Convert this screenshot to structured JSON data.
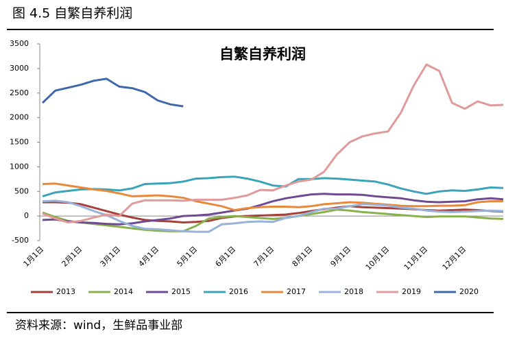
{
  "header": {
    "title": "图 4.5 自繁自养利润"
  },
  "chart_data": {
    "type": "line",
    "title": "自繁自养利润",
    "categories": [
      "1月1日",
      null,
      null,
      "2月1日",
      null,
      null,
      "3月1日",
      null,
      null,
      "4月1日",
      null,
      null,
      "5月1日",
      null,
      null,
      "6月1日",
      null,
      null,
      "7月1日",
      null,
      null,
      "8月1日",
      null,
      null,
      "9月1日",
      null,
      null,
      "10月1日",
      null,
      null,
      "11月1日",
      null,
      null,
      "12月1日",
      null,
      null,
      null
    ],
    "ylim": [
      -500,
      3500
    ],
    "yticks": [
      -500,
      0,
      500,
      1000,
      1500,
      2000,
      2500,
      3000,
      3500
    ],
    "grid": false,
    "legend": "bottom",
    "series": [
      {
        "name": "2013",
        "color": "#a5403c",
        "values": [
          280,
          280,
          270,
          240,
          170,
          100,
          30,
          -30,
          -80,
          -100,
          -110,
          -130,
          -120,
          -100,
          -40,
          -10,
          0,
          10,
          20,
          30,
          60,
          100,
          140,
          170,
          200,
          180,
          170,
          160,
          150,
          140,
          120,
          110,
          120,
          130,
          120,
          100,
          90
        ]
      },
      {
        "name": "2014",
        "color": "#88b04b",
        "values": [
          70,
          -20,
          -100,
          -130,
          -160,
          -190,
          -220,
          -250,
          -280,
          -300,
          -310,
          -310,
          -200,
          -50,
          -20,
          0,
          -20,
          -40,
          -60,
          -40,
          0,
          40,
          80,
          130,
          110,
          80,
          60,
          40,
          20,
          0,
          -20,
          -10,
          -10,
          -10,
          -30,
          -50,
          -60
        ]
      },
      {
        "name": "2015",
        "color": "#6f4a93",
        "values": [
          -80,
          -70,
          -110,
          -130,
          -140,
          -160,
          -170,
          -150,
          -110,
          -80,
          -50,
          0,
          10,
          30,
          70,
          110,
          150,
          220,
          300,
          360,
          400,
          440,
          450,
          440,
          440,
          430,
          400,
          380,
          360,
          320,
          290,
          280,
          290,
          300,
          340,
          360,
          340
        ]
      },
      {
        "name": "2016",
        "color": "#3ba3b8",
        "values": [
          400,
          480,
          510,
          540,
          550,
          540,
          520,
          560,
          650,
          660,
          670,
          700,
          760,
          770,
          790,
          800,
          760,
          700,
          620,
          600,
          750,
          750,
          770,
          760,
          740,
          720,
          700,
          640,
          560,
          500,
          450,
          500,
          520,
          510,
          540,
          580,
          570
        ]
      },
      {
        "name": "2017",
        "color": "#e8883a",
        "values": [
          650,
          660,
          620,
          580,
          540,
          510,
          460,
          400,
          410,
          420,
          400,
          370,
          300,
          250,
          200,
          120,
          160,
          180,
          190,
          190,
          180,
          200,
          240,
          260,
          280,
          270,
          250,
          230,
          210,
          200,
          200,
          210,
          210,
          220,
          280,
          300,
          300
        ]
      },
      {
        "name": "2018",
        "color": "#98b2d8",
        "values": [
          300,
          310,
          280,
          200,
          100,
          20,
          -100,
          -200,
          -260,
          -270,
          -290,
          -310,
          -320,
          -320,
          -170,
          -150,
          -120,
          -110,
          -120,
          -40,
          0,
          80,
          150,
          150,
          200,
          240,
          230,
          210,
          170,
          150,
          110,
          90,
          80,
          90,
          100,
          110,
          100
        ]
      },
      {
        "name": "2019",
        "color": "#e09a9a",
        "values": [
          50,
          -50,
          -130,
          -100,
          -30,
          30,
          0,
          250,
          320,
          320,
          320,
          310,
          330,
          330,
          330,
          370,
          420,
          530,
          520,
          620,
          700,
          740,
          900,
          1250,
          1500,
          1620,
          1680,
          1720,
          2100,
          2650,
          3080,
          2950,
          2300,
          2180,
          2330,
          2250,
          2260
        ]
      },
      {
        "name": "2020",
        "color": "#3e68a8",
        "values": [
          2300,
          2550,
          2610,
          2670,
          2750,
          2790,
          2630,
          2600,
          2520,
          2350,
          2270,
          2230,
          null,
          null,
          null,
          null,
          null,
          null,
          null,
          null,
          null,
          null,
          null,
          null,
          null,
          null,
          null,
          null,
          null,
          null,
          null,
          null,
          null,
          null,
          null,
          null,
          null
        ]
      }
    ]
  },
  "footer": {
    "source": "资料来源：wind，生鲜品事业部"
  }
}
